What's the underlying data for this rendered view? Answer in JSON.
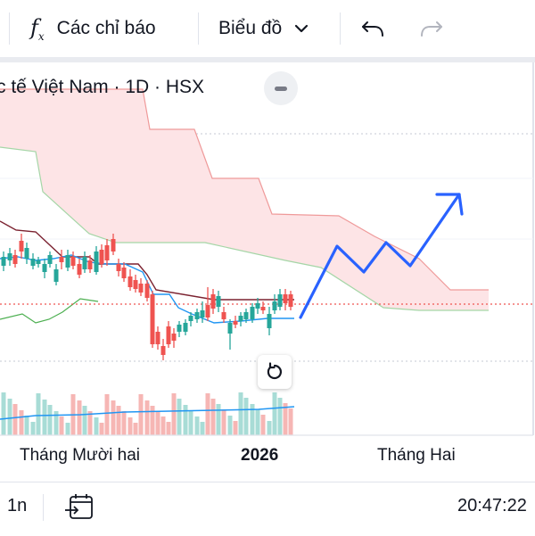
{
  "toolbar": {
    "indicators_label": "Các chỉ báo",
    "chart_type_label": "Biểu đồ",
    "icons": [
      "fx-icon",
      "chevron-down-icon",
      "undo-icon",
      "redo-icon"
    ]
  },
  "legend": {
    "title": "c tế Việt Nam · 1D · HSX"
  },
  "x_axis": {
    "labels": [
      "Tháng Mười hai",
      "2026",
      "Tháng Hai"
    ]
  },
  "bottom_bar": {
    "interval_label": "1n",
    "clock": "20:47:22",
    "icons": [
      "goto-date-icon"
    ]
  },
  "colors": {
    "up": "#26a69a",
    "down": "#ef5350",
    "cloud": "#fde4e6",
    "kijun": "#7b2230",
    "tenkan": "#2196f3",
    "chikou": "#4caf50",
    "annotation": "#2962ff"
  }
}
